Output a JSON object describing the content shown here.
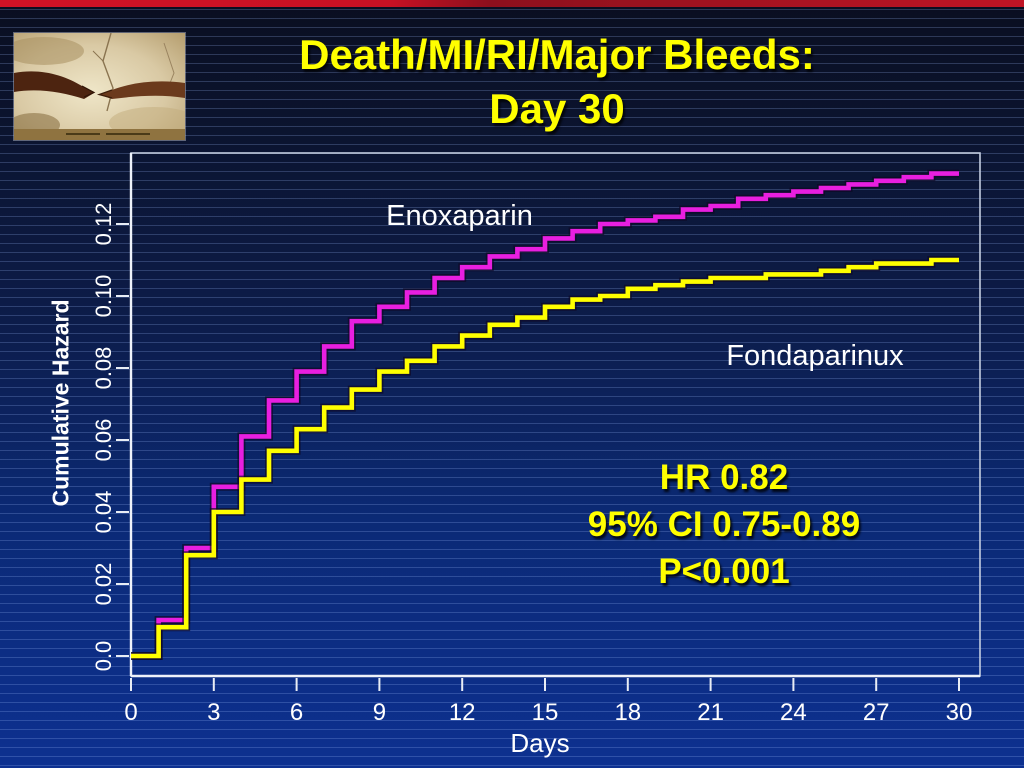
{
  "slide": {
    "title_line1": "Death/MI/RI/Major Bleeds:",
    "title_line2": "Day 30"
  },
  "palette": {
    "top_bar_red": "#c41226",
    "title_yellow": "#ffff00",
    "background_navy_top": "#0a0e20",
    "background_blue_bottom": "#0d3090",
    "stripe_blue": "#3a5cae",
    "axis_white": "#eef2fa",
    "enoxaparin_magenta": "#e81fe0",
    "fondaparinux_yellow": "#ffff00"
  },
  "corner_image": {
    "name": "creation-of-adam-fresco-detail"
  },
  "stats": {
    "lines": [
      "HR 0.82",
      "95% CI 0.75-0.89",
      "P<0.001"
    ]
  },
  "chart_data": {
    "type": "line",
    "step": true,
    "title": "",
    "xlabel": "Days",
    "ylabel": "Cumulative Hazard",
    "x_ticks": [
      0,
      3,
      6,
      9,
      12,
      15,
      18,
      21,
      24,
      27,
      30
    ],
    "y_ticks": [
      "0.0",
      "0.02",
      "0.04",
      "0.06",
      "0.08",
      "0.10",
      "0.12"
    ],
    "xlim": [
      0,
      31.4
    ],
    "ylim": [
      -0.0056,
      0.1397
    ],
    "grid": false,
    "legend_position": "inline-annotations",
    "x": [
      0,
      1,
      2,
      3,
      4,
      5,
      6,
      7,
      8,
      9,
      10,
      11,
      12,
      13,
      14,
      15,
      16,
      17,
      18,
      19,
      20,
      21,
      22,
      23,
      24,
      25,
      26,
      27,
      28,
      29,
      30
    ],
    "series": [
      {
        "name": "Enoxaparin",
        "color": "#e81fe0",
        "values": [
          0,
          0.01,
          0.03,
          0.047,
          0.061,
          0.071,
          0.079,
          0.086,
          0.093,
          0.097,
          0.101,
          0.105,
          0.108,
          0.111,
          0.113,
          0.116,
          0.118,
          0.12,
          0.121,
          0.122,
          0.124,
          0.125,
          0.127,
          0.128,
          0.129,
          0.13,
          0.131,
          0.132,
          0.133,
          0.134,
          0.134
        ]
      },
      {
        "name": "Fondaparinux",
        "color": "#ffff00",
        "values": [
          0,
          0.008,
          0.028,
          0.04,
          0.049,
          0.057,
          0.063,
          0.069,
          0.074,
          0.079,
          0.082,
          0.086,
          0.089,
          0.092,
          0.094,
          0.097,
          0.099,
          0.1,
          0.102,
          0.103,
          0.104,
          0.105,
          0.105,
          0.106,
          0.106,
          0.107,
          0.108,
          0.109,
          0.109,
          0.11,
          0.11
        ]
      }
    ],
    "annotations": [
      "Enoxaparin",
      "Fondaparinux",
      "HR 0.82",
      "95% CI 0.75-0.89",
      "P<0.001"
    ]
  }
}
